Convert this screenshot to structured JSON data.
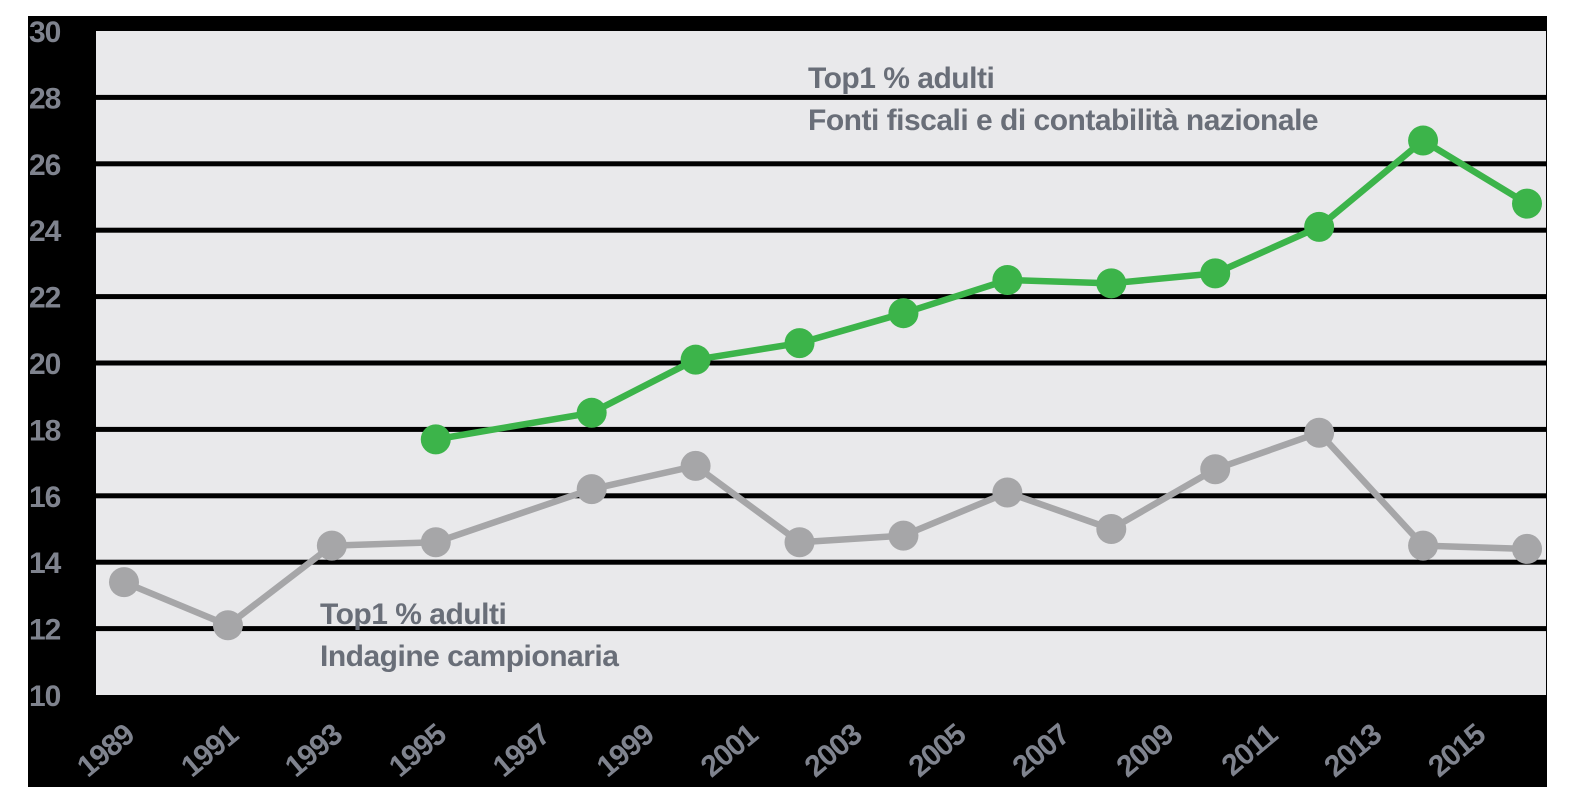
{
  "chart_data": {
    "type": "line",
    "title": "",
    "xlabel": "",
    "ylabel": "",
    "ylim": [
      10,
      30
    ],
    "xlim": [
      1988.5,
      2016.4
    ],
    "grid": "horizontal-black",
    "legend_position": "inline-annotations",
    "page_bg": "#ffffff",
    "canvas_bg": "#000000",
    "plot_bg": "#e9e9eb",
    "tick_label_color": "#7f838e",
    "y_ticks": [
      10,
      12,
      14,
      16,
      18,
      20,
      22,
      24,
      26,
      28,
      30
    ],
    "x_ticks": [
      1989,
      1991,
      1993,
      1995,
      1997,
      1999,
      2001,
      2003,
      2005,
      2007,
      2009,
      2011,
      2013,
      2015
    ],
    "series": [
      {
        "id": "fiscal",
        "name": "Top1 % adulti — Fonti fiscali e di contabilità nazionale",
        "color": "#3cb44a",
        "x": [
          1995,
          1998,
          2000,
          2002,
          2004,
          2006,
          2008,
          2010,
          2012,
          2014,
          2016
        ],
        "y": [
          17.7,
          18.5,
          20.1,
          20.6,
          21.5,
          22.5,
          22.4,
          22.7,
          24.1,
          26.7,
          24.8
        ]
      },
      {
        "id": "survey",
        "name": "Top1 % adulti — Indagine campionaria",
        "color": "#a6a6a8",
        "x": [
          1989,
          1991,
          1993,
          1995,
          1998,
          2000,
          2002,
          2004,
          2006,
          2008,
          2010,
          2012,
          2014,
          2016
        ],
        "y": [
          13.4,
          12.1,
          14.5,
          14.6,
          16.2,
          16.9,
          14.6,
          14.8,
          16.1,
          15.0,
          16.8,
          17.9,
          14.5,
          14.4
        ]
      }
    ]
  },
  "annotations": {
    "fiscal": {
      "line1": "Top1 % adulti",
      "line2": "Fonti fiscali e di contabilità nazionale"
    },
    "survey": {
      "line1": "Top1 % adulti",
      "line2": "Indagine campionaria"
    }
  }
}
